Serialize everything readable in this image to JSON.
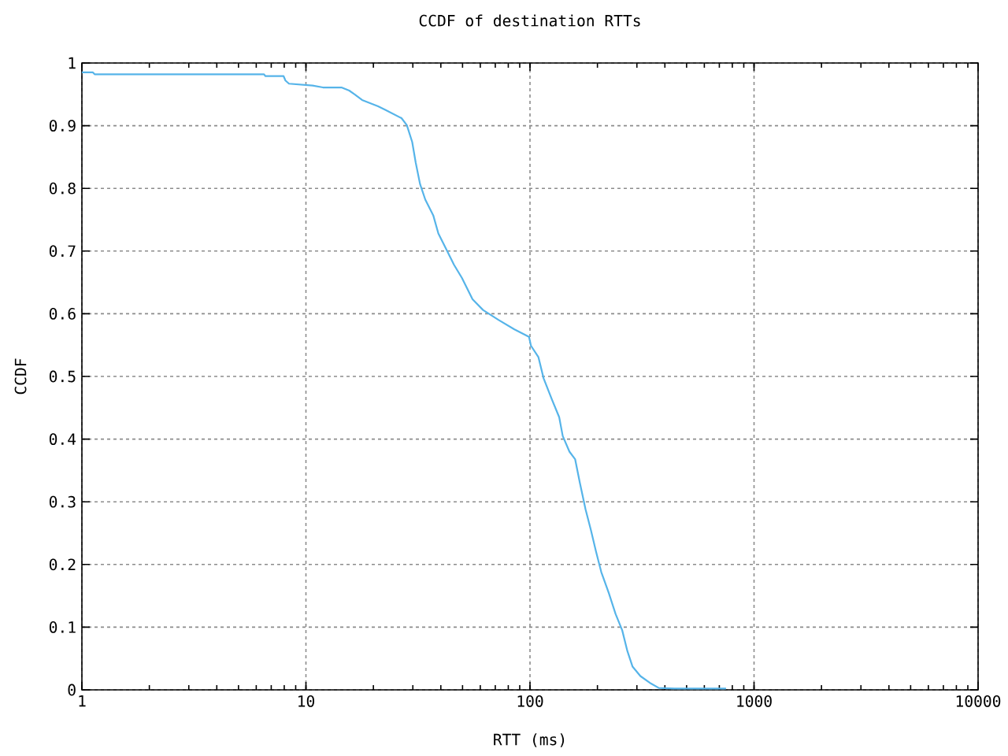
{
  "chart_data": {
    "type": "line",
    "title": "CCDF of destination RTTs",
    "xlabel": "RTT (ms)",
    "ylabel": "CCDF",
    "log": "x",
    "grid": true,
    "color": "#56b4e9",
    "xlim": [
      1,
      10000
    ],
    "ylim": [
      0,
      1
    ],
    "xticks": [
      1,
      10,
      100,
      1000,
      10000
    ],
    "yticks": [
      0,
      0.1,
      0.2,
      0.3,
      0.4,
      0.5,
      0.6,
      0.7,
      0.8,
      0.9,
      1
    ],
    "x": [
      1,
      1.12,
      1.14,
      6.5,
      6.6,
      7.95,
      8.1,
      8.4,
      10.7,
      11.9,
      14.4,
      15.6,
      16.5,
      17.8,
      21,
      22.7,
      26.7,
      28.2,
      29.8,
      30.9,
      32.3,
      34.1,
      37,
      39,
      42.3,
      45.8,
      49.7,
      55.4,
      61.7,
      72.5,
      85.2,
      99,
      101,
      109,
      115,
      125,
      135,
      140,
      150,
      159,
      167,
      177,
      187,
      197,
      208,
      225,
      241,
      258,
      272,
      287,
      311,
      347,
      376,
      442,
      750
    ],
    "values": [
      0.985,
      0.985,
      0.982,
      0.982,
      0.979,
      0.979,
      0.972,
      0.967,
      0.964,
      0.961,
      0.961,
      0.956,
      0.95,
      0.941,
      0.931,
      0.925,
      0.912,
      0.901,
      0.874,
      0.841,
      0.807,
      0.782,
      0.757,
      0.728,
      0.703,
      0.678,
      0.657,
      0.623,
      0.606,
      0.59,
      0.575,
      0.563,
      0.549,
      0.531,
      0.497,
      0.464,
      0.435,
      0.405,
      0.38,
      0.368,
      0.33,
      0.288,
      0.255,
      0.221,
      0.188,
      0.154,
      0.121,
      0.095,
      0.062,
      0.037,
      0.022,
      0.01,
      0.003,
      0.002,
      0.002
    ]
  }
}
